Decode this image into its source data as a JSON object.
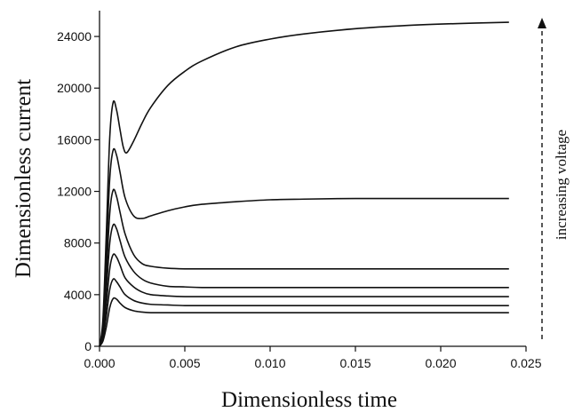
{
  "chart_data": {
    "type": "line",
    "title": "",
    "xlabel": "Dimensionless time",
    "ylabel": "Dimensionless current",
    "xlim": [
      0,
      0.025
    ],
    "ylim": [
      0,
      26000
    ],
    "xticks": [
      "0.000",
      "0.005",
      "0.010",
      "0.015",
      "0.020",
      "0.025"
    ],
    "yticks": [
      "0",
      "4000",
      "8000",
      "12000",
      "16000",
      "20000",
      "24000"
    ],
    "annotation": "increasing voltage",
    "grid": false,
    "series": [
      {
        "x": [
          0.0,
          0.0002,
          0.0004,
          0.0006,
          0.0008,
          0.001,
          0.0012,
          0.0015,
          0.002,
          0.0025,
          0.003,
          0.004,
          0.005,
          0.006,
          0.008,
          0.01,
          0.012,
          0.015,
          0.018,
          0.021,
          0.024
        ],
        "values": [
          0,
          400,
          1500,
          3000,
          3700,
          3650,
          3350,
          3000,
          2750,
          2650,
          2600,
          2600,
          2600,
          2600,
          2600,
          2600,
          2600,
          2600,
          2600,
          2600,
          2600
        ]
      },
      {
        "x": [
          0.0,
          0.0002,
          0.0004,
          0.0006,
          0.0008,
          0.001,
          0.0012,
          0.0015,
          0.002,
          0.0025,
          0.003,
          0.004,
          0.005,
          0.006,
          0.008,
          0.01,
          0.012,
          0.015,
          0.018,
          0.021,
          0.024
        ],
        "values": [
          0,
          600,
          2300,
          4400,
          5200,
          5000,
          4600,
          4000,
          3550,
          3350,
          3250,
          3200,
          3150,
          3150,
          3150,
          3150,
          3150,
          3150,
          3150,
          3150,
          3150
        ]
      },
      {
        "x": [
          0.0,
          0.0002,
          0.0004,
          0.0006,
          0.0008,
          0.001,
          0.0012,
          0.0015,
          0.002,
          0.0025,
          0.003,
          0.004,
          0.005,
          0.006,
          0.008,
          0.01,
          0.012,
          0.015,
          0.018,
          0.021,
          0.024
        ],
        "values": [
          0,
          800,
          3200,
          6000,
          7100,
          6900,
          6300,
          5300,
          4600,
          4200,
          4000,
          3900,
          3850,
          3850,
          3850,
          3850,
          3850,
          3850,
          3850,
          3850,
          3850
        ]
      },
      {
        "x": [
          0.0,
          0.0002,
          0.0004,
          0.0006,
          0.0008,
          0.001,
          0.0012,
          0.0015,
          0.002,
          0.0025,
          0.003,
          0.004,
          0.005,
          0.006,
          0.008,
          0.01,
          0.012,
          0.015,
          0.018,
          0.021,
          0.024
        ],
        "values": [
          0,
          1000,
          4300,
          8000,
          9400,
          9100,
          8200,
          6900,
          5800,
          5200,
          4900,
          4650,
          4600,
          4550,
          4550,
          4550,
          4550,
          4550,
          4550,
          4550,
          4550
        ]
      },
      {
        "x": [
          0.0,
          0.0002,
          0.0004,
          0.0006,
          0.0008,
          0.001,
          0.0012,
          0.0015,
          0.002,
          0.0025,
          0.003,
          0.004,
          0.005,
          0.006,
          0.008,
          0.01,
          0.012,
          0.015,
          0.018,
          0.021,
          0.024
        ],
        "values": [
          0,
          1300,
          5500,
          10300,
          12100,
          11600,
          10400,
          8700,
          7100,
          6400,
          6200,
          6050,
          6000,
          6000,
          6000,
          6000,
          6000,
          6000,
          6000,
          6000,
          6000
        ]
      },
      {
        "x": [
          0.0,
          0.0002,
          0.0004,
          0.0006,
          0.0008,
          0.001,
          0.0012,
          0.0015,
          0.002,
          0.0025,
          0.003,
          0.004,
          0.005,
          0.006,
          0.008,
          0.01,
          0.012,
          0.015,
          0.018,
          0.021,
          0.024
        ],
        "values": [
          0,
          1700,
          7000,
          13000,
          15200,
          14800,
          13500,
          11500,
          10100,
          9900,
          10100,
          10500,
          10800,
          11000,
          11200,
          11350,
          11400,
          11450,
          11450,
          11450,
          11450
        ]
      },
      {
        "x": [
          0.0,
          0.0002,
          0.0004,
          0.0006,
          0.0008,
          0.001,
          0.0012,
          0.0014,
          0.0016,
          0.002,
          0.0025,
          0.003,
          0.004,
          0.005,
          0.006,
          0.008,
          0.01,
          0.012,
          0.015,
          0.018,
          0.021,
          0.024
        ],
        "values": [
          0,
          2100,
          8800,
          16200,
          18900,
          18300,
          16800,
          15400,
          15000,
          15900,
          17300,
          18500,
          20200,
          21300,
          22100,
          23200,
          23800,
          24200,
          24600,
          24850,
          25000,
          25100
        ]
      }
    ]
  }
}
